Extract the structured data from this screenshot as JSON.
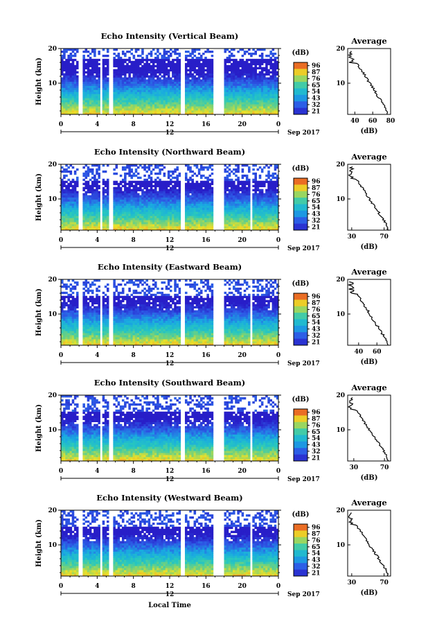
{
  "figure": {
    "xlabel": "Local Time",
    "date_label": "Sep 2017",
    "colorbar_unit": "(dB)",
    "colorbar_ticks": [
      "96",
      "87",
      "76",
      "65",
      "54",
      "43",
      "32",
      "21"
    ],
    "average_title": "Average",
    "average_xlabel": "(dB)",
    "colors": {
      "low": "#2b2bd6",
      "mid": "#19b5e0",
      "high": "#f2e21b",
      "max": "#e8301a",
      "profile": "#000000"
    }
  },
  "chart_data": [
    {
      "type": "heatmap",
      "title": "Echo Intensity (Vertical Beam)",
      "ylabel": "Height (km)",
      "x_ticks": [
        "0",
        "4",
        "8",
        "12",
        "16",
        "20",
        "0"
      ],
      "day_label": "12",
      "y_ticks": [
        "20",
        "10"
      ],
      "xlim": [
        0,
        24
      ],
      "ylim": [
        1,
        20
      ],
      "data_gaps_hours": [
        [
          2.0,
          2.4
        ],
        [
          4.2,
          4.6
        ],
        [
          5.3,
          5.7
        ],
        [
          13.3,
          13.7
        ],
        [
          16.7,
          18.0
        ]
      ],
      "average": {
        "x_ticks": [
          "40",
          "60",
          "80"
        ],
        "xlim": [
          32,
          80
        ]
      }
    },
    {
      "type": "heatmap",
      "title": "Echo Intensity (Northward Beam)",
      "ylabel": "Height (km)",
      "x_ticks": [
        "0",
        "4",
        "8",
        "12",
        "16",
        "20",
        "0"
      ],
      "day_label": "12",
      "y_ticks": [
        "20",
        "10"
      ],
      "xlim": [
        0,
        24
      ],
      "ylim": [
        1,
        20
      ],
      "data_gaps_hours": [
        [
          2.0,
          2.4
        ],
        [
          4.2,
          4.6
        ],
        [
          5.3,
          5.7
        ],
        [
          13.3,
          13.7
        ],
        [
          16.7,
          18.0
        ],
        [
          20.8,
          21.2
        ]
      ],
      "average": {
        "x_ticks": [
          "30",
          "70"
        ],
        "xlim": [
          25,
          78
        ]
      }
    },
    {
      "type": "heatmap",
      "title": "Echo Intensity (Eastward Beam)",
      "ylabel": "Height (km)",
      "x_ticks": [
        "0",
        "4",
        "8",
        "12",
        "16",
        "20",
        "0"
      ],
      "day_label": "12",
      "y_ticks": [
        "20",
        "10"
      ],
      "xlim": [
        0,
        24
      ],
      "ylim": [
        1,
        20
      ],
      "data_gaps_hours": [
        [
          2.0,
          2.4
        ],
        [
          4.2,
          4.6
        ],
        [
          5.3,
          5.7
        ],
        [
          13.3,
          13.7
        ],
        [
          16.7,
          18.0
        ],
        [
          20.8,
          21.2
        ]
      ],
      "average": {
        "x_ticks": [
          "40",
          "60"
        ],
        "xlim": [
          28,
          75
        ]
      }
    },
    {
      "type": "heatmap",
      "title": "Echo Intensity (Southward Beam)",
      "ylabel": "Height (km)",
      "x_ticks": [
        "0",
        "4",
        "8",
        "12",
        "16",
        "20",
        "0"
      ],
      "day_label": "12",
      "y_ticks": [
        "20",
        "10"
      ],
      "xlim": [
        0,
        24
      ],
      "ylim": [
        1,
        20
      ],
      "data_gaps_hours": [
        [
          2.0,
          2.4
        ],
        [
          4.2,
          4.6
        ],
        [
          5.3,
          5.7
        ],
        [
          13.3,
          13.7
        ],
        [
          16.7,
          18.0
        ],
        [
          20.8,
          21.2
        ]
      ],
      "average": {
        "x_ticks": [
          "30",
          "70"
        ],
        "xlim": [
          22,
          78
        ]
      }
    },
    {
      "type": "heatmap",
      "title": "Echo Intensity (Westward Beam)",
      "ylabel": "Height (km)",
      "x_ticks": [
        "0",
        "4",
        "8",
        "12",
        "16",
        "20",
        "0"
      ],
      "day_label": "12",
      "y_ticks": [
        "20",
        "10"
      ],
      "xlim": [
        0,
        24
      ],
      "ylim": [
        1,
        20
      ],
      "data_gaps_hours": [
        [
          2.0,
          2.4
        ],
        [
          4.2,
          4.6
        ],
        [
          5.3,
          5.7
        ],
        [
          13.3,
          13.7
        ],
        [
          16.7,
          18.0
        ],
        [
          20.8,
          21.2
        ]
      ],
      "average": {
        "x_ticks": [
          "30",
          "70"
        ],
        "xlim": [
          25,
          78
        ]
      }
    }
  ]
}
